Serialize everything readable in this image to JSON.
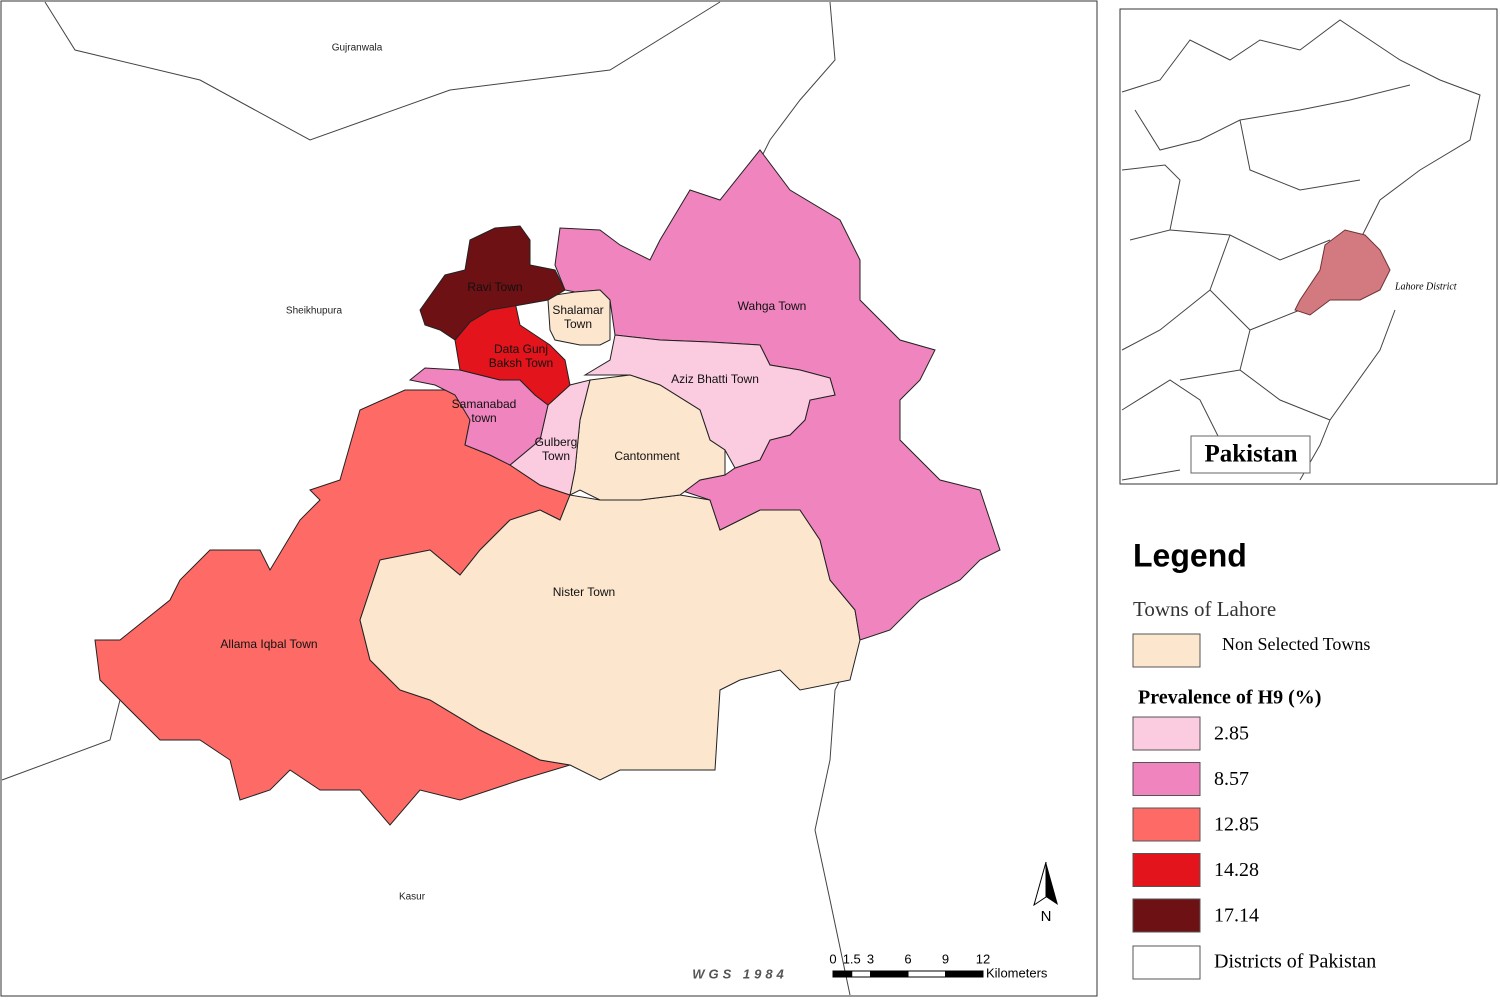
{
  "map": {
    "districts": [
      "Gujranwala",
      "Sheikhupura",
      "Kasur"
    ],
    "towns": [
      {
        "label": [
          "Allama Iqbal Town"
        ],
        "color": "#fe6b66"
      },
      {
        "label": [
          "Nister Town"
        ],
        "color": "#fce6ce"
      },
      {
        "label": [
          "Wahga Town"
        ],
        "color": "#f084be"
      },
      {
        "label": [
          "Aziz Bhatti Town"
        ],
        "color": "#fbcbdf"
      },
      {
        "label": [
          "Cantonment"
        ],
        "color": "#fce6ce"
      },
      {
        "label": [
          "Gulberg",
          "Town"
        ],
        "color": "#fbcbdf"
      },
      {
        "label": [
          "Samanabad",
          "town"
        ],
        "color": "#f084be"
      },
      {
        "label": [
          "Shalamar",
          "Town"
        ],
        "color": "#fce6ce"
      },
      {
        "label": [
          "Data Gunj",
          "Baksh Town"
        ],
        "color": "#e3141b"
      },
      {
        "label": [
          "Ravi Town"
        ],
        "color": "#6e1114"
      }
    ],
    "projection": "WGS 1984",
    "north": "N",
    "scale": {
      "ticks": [
        0,
        1.5,
        3,
        6,
        9,
        12
      ],
      "unit": "Kilometers"
    }
  },
  "inset": {
    "title": "Pakistan",
    "label": "Lahore District"
  },
  "legend": {
    "title": "Legend",
    "group1": "Towns of Lahore",
    "non_selected": {
      "label": "Non Selected Towns",
      "color": "#fce6ce"
    },
    "group2": "Prevalence of H9 (%)",
    "items": [
      {
        "label": "2.85",
        "color": "#fbcbdf"
      },
      {
        "label": "8.57",
        "color": "#f084be"
      },
      {
        "label": "12.85",
        "color": "#fe6b66"
      },
      {
        "label": "14.28",
        "color": "#e3141b"
      },
      {
        "label": "17.14",
        "color": "#6e1114"
      }
    ],
    "districts": {
      "label": "Districts of Pakistan",
      "color": "#ffffff"
    }
  }
}
